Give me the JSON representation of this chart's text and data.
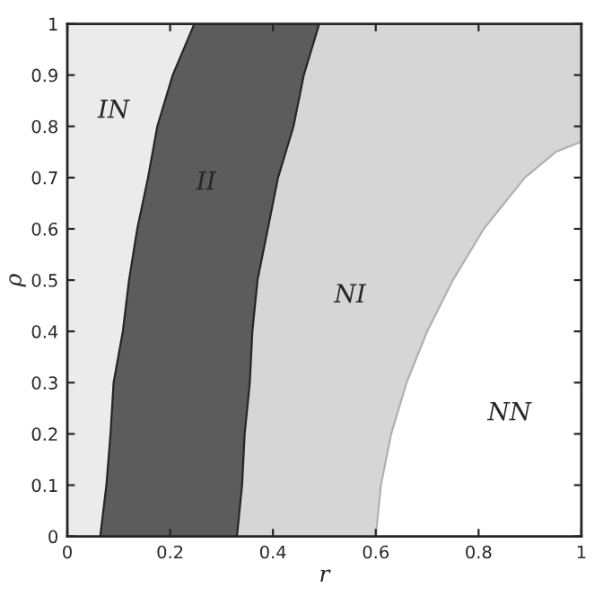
{
  "chart_data": {
    "type": "line",
    "xlabel": "r",
    "ylabel": "ρ",
    "xlim": [
      0,
      1
    ],
    "ylim": [
      0,
      1
    ],
    "xticks": [
      0,
      0.2,
      0.4,
      0.6,
      0.8,
      1
    ],
    "yticks": [
      0,
      0.1,
      0.2,
      0.3,
      0.4,
      0.5,
      0.6,
      0.7,
      0.8,
      0.9,
      1
    ],
    "grid": false,
    "marker": "none",
    "line_style": "solid",
    "series": [
      {
        "color": "#262626",
        "x": [
          0.064,
          0.076,
          0.084,
          0.09,
          0.108,
          0.12,
          0.136,
          0.157,
          0.175,
          0.205,
          0.247
        ],
        "values": [
          0,
          0.1,
          0.2,
          0.3,
          0.4,
          0.5,
          0.6,
          0.7,
          0.8,
          0.9,
          1
        ]
      },
      {
        "color": "#262626",
        "x": [
          0.33,
          0.34,
          0.345,
          0.355,
          0.36,
          0.37,
          0.39,
          0.41,
          0.44,
          0.46,
          0.49
        ],
        "values": [
          0,
          0.1,
          0.2,
          0.3,
          0.4,
          0.5,
          0.6,
          0.7,
          0.8,
          0.9,
          1
        ]
      },
      {
        "color": "#b0b0b0",
        "x": [
          0.6,
          0.61,
          0.63,
          0.66,
          0.7,
          0.75,
          0.81,
          0.89,
          0.95,
          1.0
        ],
        "values": [
          0,
          0.1,
          0.2,
          0.3,
          0.4,
          0.5,
          0.6,
          0.7,
          0.75,
          0.77
        ]
      }
    ],
    "annotations": [
      "IN",
      "II",
      "NI",
      "NN"
    ]
  }
}
